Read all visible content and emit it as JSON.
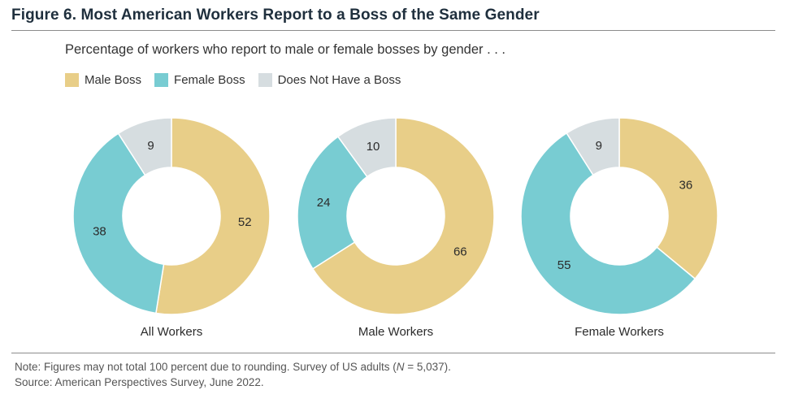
{
  "title": "Figure 6. Most American Workers Report to a Boss of the Same Gender",
  "subtitle": "Percentage of  workers who report to male or female bosses by gender . . .",
  "legend": [
    {
      "label": "Male Boss",
      "color": "#E8CE88"
    },
    {
      "label": "Female Boss",
      "color": "#78CCD2"
    },
    {
      "label": "Does Not Have a Boss",
      "color": "#D6DDE0"
    }
  ],
  "chart_data": {
    "type": "pie",
    "variant": "donut",
    "series_names": [
      "Male Boss",
      "Female Boss",
      "Does Not Have a Boss"
    ],
    "colors": [
      "#E8CE88",
      "#78CCD2",
      "#D6DDE0"
    ],
    "charts": [
      {
        "label": "All Workers",
        "values": [
          52,
          38,
          9
        ]
      },
      {
        "label": "Male Workers",
        "values": [
          66,
          24,
          10
        ]
      },
      {
        "label": "Female Workers",
        "values": [
          36,
          55,
          9
        ]
      }
    ]
  },
  "note": {
    "line1_pre": "Note: Figures may not total 100 percent due to rounding. Survey of US adults (",
    "line1_n": "N",
    "line1_post": " = 5,037).",
    "line2": "Source: American Perspectives Survey, June 2022."
  }
}
